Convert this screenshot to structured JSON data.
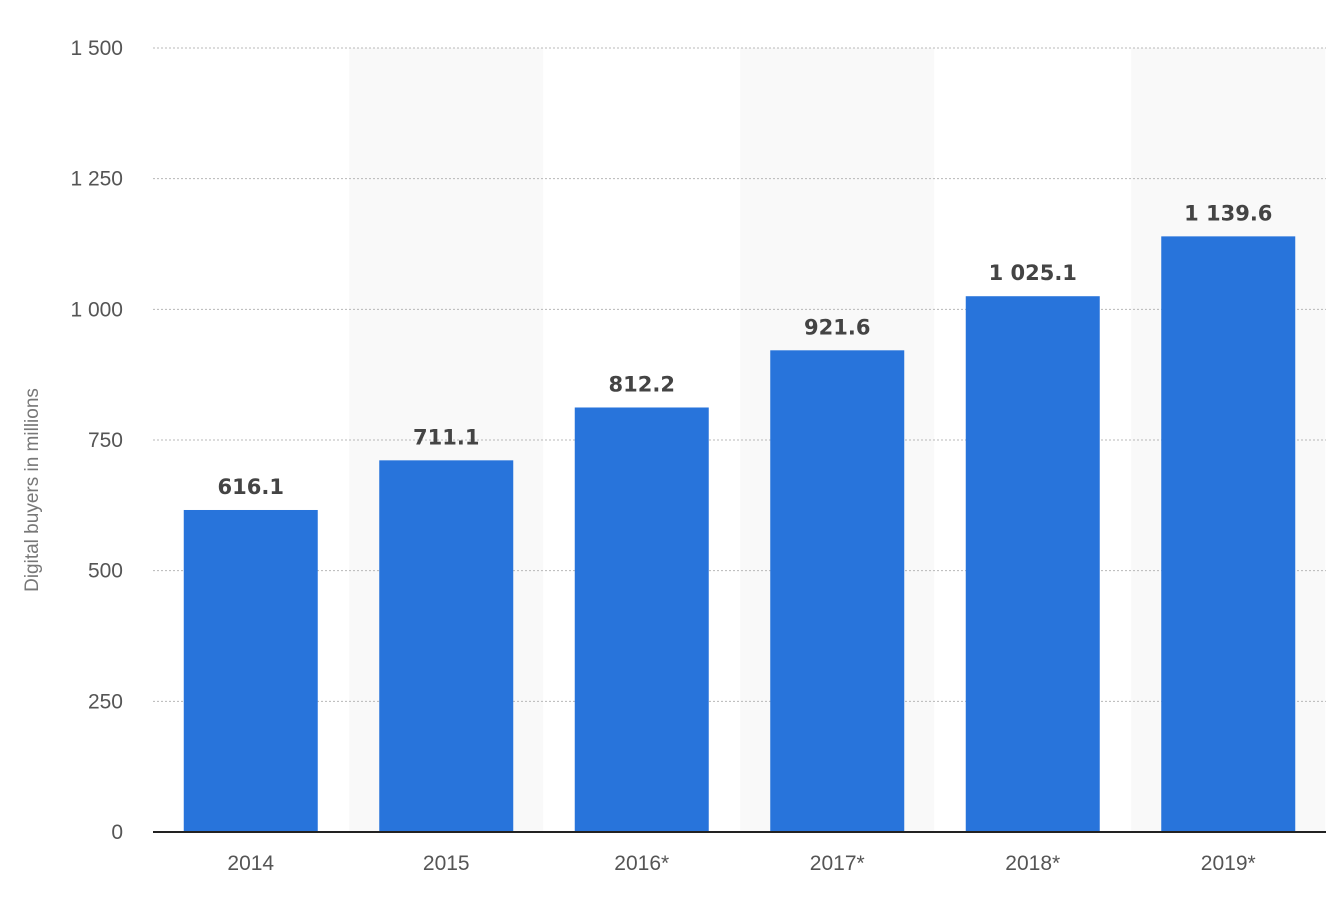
{
  "chart_data": {
    "type": "bar",
    "title": "",
    "xlabel": "",
    "ylabel": "Digital buyers in millions",
    "categories": [
      "2014",
      "2015",
      "2016*",
      "2017*",
      "2018*",
      "2019*"
    ],
    "values": [
      616.1,
      711.1,
      812.2,
      921.6,
      1025.1,
      1139.6
    ],
    "value_labels": [
      "616.1",
      "711.1",
      "812.2",
      "921.6",
      "1 025.1",
      "1 139.6"
    ],
    "ylim": [
      0,
      1500
    ],
    "yticks": [
      0,
      250,
      500,
      750,
      1000,
      1250,
      1500
    ],
    "ytick_labels": [
      "0",
      "250",
      "500",
      "750",
      "1 000",
      "1 250",
      "1 500"
    ],
    "grid": true,
    "bar_color": "#2874db",
    "alternate_band_color": "#f9f9f9"
  }
}
